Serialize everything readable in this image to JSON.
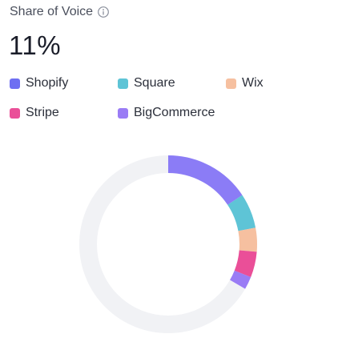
{
  "widget": {
    "title": "Share of Voice",
    "info_icon": "info-circle-icon",
    "value": "11%"
  },
  "chart_data": {
    "type": "pie",
    "style": "donut",
    "title": "Share of Voice",
    "total_share_percent": 11,
    "series": [
      {
        "name": "Shopify",
        "value": 4.7,
        "color": "#8b7cf6"
      },
      {
        "name": "Square",
        "value": 1.9,
        "color": "#5ec4d6"
      },
      {
        "name": "Wix",
        "value": 1.3,
        "color": "#f6c0a0"
      },
      {
        "name": "Stripe",
        "value": 1.4,
        "color": "#ea4f98"
      },
      {
        "name": "BigCommerce",
        "value": 0.7,
        "color": "#9a7cf5"
      }
    ],
    "legend_swatches": [
      "#6e6ff2",
      "#5ec4d6",
      "#f6c0a0",
      "#ea4f98",
      "#9a7cf5"
    ],
    "remainder_color": "#f1f2f5",
    "legend_position": "top"
  }
}
